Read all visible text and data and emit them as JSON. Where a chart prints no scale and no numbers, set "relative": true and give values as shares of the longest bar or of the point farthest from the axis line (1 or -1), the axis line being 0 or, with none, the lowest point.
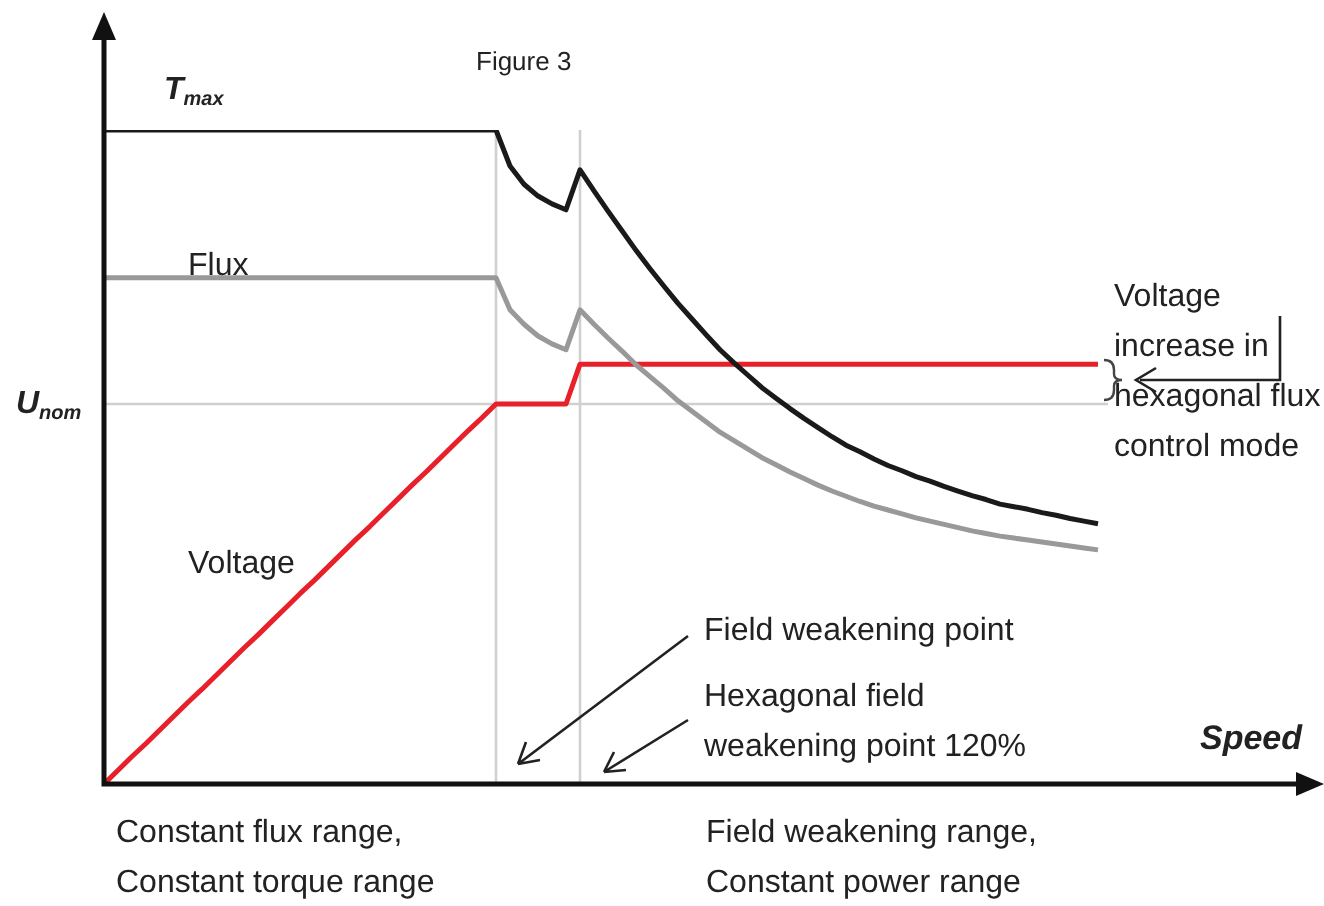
{
  "chart_data": {
    "type": "line",
    "relative": true,
    "xlabel": "Speed",
    "legend": false,
    "marker": "none",
    "line_style": "solid",
    "categories": [
      null,
      null,
      null,
      null,
      null,
      null,
      null,
      null,
      null,
      null,
      null,
      null,
      null,
      null,
      null,
      null,
      null,
      null,
      null,
      null,
      null,
      null,
      null,
      null,
      null,
      null,
      null,
      null,
      null,
      null,
      null,
      null,
      null,
      null,
      null,
      null,
      null,
      null,
      null,
      null,
      null,
      null,
      null,
      null,
      null,
      null,
      null,
      null,
      null,
      null,
      null,
      null,
      null,
      null,
      null,
      null,
      null,
      null,
      null,
      null,
      null,
      null,
      null,
      null,
      null,
      null,
      null,
      null,
      null,
      null,
      null,
      null
    ],
    "series": [
      {
        "name": "T$_{max}$",
        "color": "#1a1a1a",
        "values": [
          1,
          1,
          1,
          1,
          1,
          1,
          1,
          1,
          1,
          1,
          1,
          1,
          1,
          1,
          1,
          1,
          1,
          1,
          1,
          1,
          1,
          1,
          1,
          1,
          1,
          1,
          1,
          1,
          1,
          0.945,
          0.917,
          0.899,
          0.887,
          0.878,
          0.939,
          0.907,
          0.876,
          0.846,
          0.816,
          0.788,
          0.761,
          0.735,
          0.711,
          0.687,
          0.664,
          0.644,
          0.625,
          0.606,
          0.59,
          0.574,
          0.559,
          0.545,
          0.531,
          0.518,
          0.508,
          0.497,
          0.487,
          0.479,
          0.47,
          0.463,
          0.455,
          0.448,
          0.441,
          0.435,
          0.428,
          0.424,
          0.42,
          0.415,
          0.411,
          0.406,
          0.402,
          0.398
        ]
      },
      {
        "name": "Flux",
        "color": "#999999",
        "values": [
          0.774,
          0.774,
          0.774,
          0.774,
          0.774,
          0.774,
          0.774,
          0.774,
          0.774,
          0.774,
          0.774,
          0.774,
          0.774,
          0.774,
          0.774,
          0.774,
          0.774,
          0.774,
          0.774,
          0.774,
          0.774,
          0.774,
          0.774,
          0.774,
          0.774,
          0.774,
          0.774,
          0.774,
          0.774,
          0.725,
          0.703,
          0.685,
          0.673,
          0.664,
          0.725,
          0.703,
          0.682,
          0.662,
          0.641,
          0.623,
          0.605,
          0.586,
          0.57,
          0.554,
          0.538,
          0.525,
          0.512,
          0.499,
          0.488,
          0.477,
          0.467,
          0.457,
          0.448,
          0.44,
          0.432,
          0.425,
          0.419,
          0.413,
          0.407,
          0.402,
          0.397,
          0.392,
          0.387,
          0.383,
          0.379,
          0.376,
          0.373,
          0.37,
          0.367,
          0.364,
          0.361,
          0.358
        ]
      },
      {
        "name": "Voltage",
        "color": "#e8202a",
        "values": [
          0,
          0.021,
          0.042,
          0.062,
          0.083,
          0.104,
          0.125,
          0.145,
          0.166,
          0.187,
          0.208,
          0.228,
          0.249,
          0.27,
          0.291,
          0.311,
          0.332,
          0.353,
          0.374,
          0.394,
          0.415,
          0.436,
          0.457,
          0.477,
          0.498,
          0.519,
          0.54,
          0.56,
          0.581,
          0.581,
          0.581,
          0.581,
          0.581,
          0.581,
          0.642,
          0.642,
          0.642,
          0.642,
          0.642,
          0.642,
          0.642,
          0.642,
          0.642,
          0.642,
          0.642,
          0.642,
          0.642,
          0.642,
          0.642,
          0.642,
          0.642,
          0.642,
          0.642,
          0.642,
          0.642,
          0.642,
          0.642,
          0.642,
          0.642,
          0.642,
          0.642,
          0.642,
          0.642,
          0.642,
          0.642,
          0.642,
          0.642,
          0.642,
          0.642,
          0.642,
          0.642,
          0.642
        ]
      }
    ],
    "ref_lines": [
      {
        "axis": "y",
        "value": 0.581,
        "label": "U$_{nom}$",
        "color": "#d0d0d0"
      }
    ],
    "annotations": [
      "Figure 3",
      "Voltage increase in hexagonal flux control mode",
      "Field weakening point",
      "Hexagonal field weakening point 120%",
      "Constant flux range, Constant torque range",
      "Field weakening range, Constant power range"
    ]
  }
}
